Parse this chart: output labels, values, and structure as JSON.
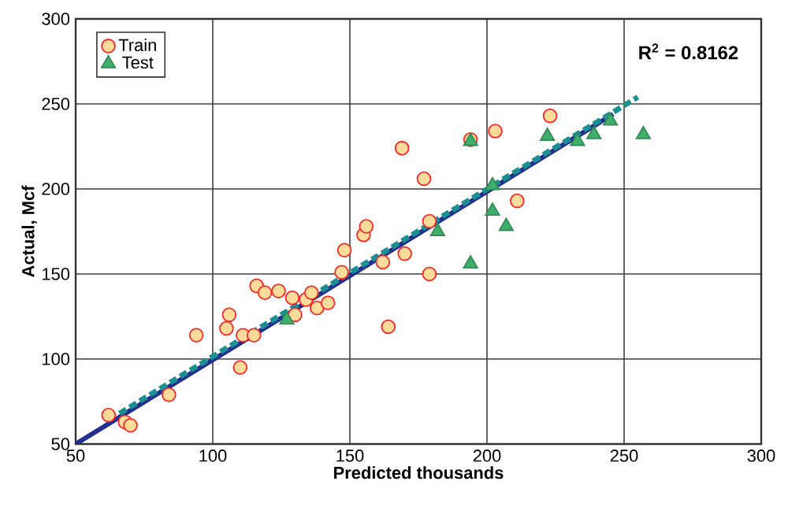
{
  "chart_data": {
    "type": "scatter",
    "xlabel": "Predicted thousands",
    "ylabel": "Actual, Mcf",
    "annotations": [
      "R$^{2}$ = 0.8162"
    ],
    "xlim": [
      50,
      300
    ],
    "ylim": [
      50,
      300
    ],
    "xticks": [
      50,
      100,
      150,
      200,
      250,
      300
    ],
    "yticks": [
      50,
      100,
      150,
      200,
      250,
      300
    ],
    "grid": true,
    "legend": "top left",
    "series": [
      {
        "name": "Train",
        "marker": "circle",
        "color": "#fddc9b",
        "x": [
          62,
          68,
          70,
          84,
          94,
          110,
          105,
          106,
          111,
          115,
          116,
          119,
          124,
          129,
          130,
          134,
          136,
          138,
          142,
          147,
          148,
          155,
          156,
          162,
          170,
          164,
          169,
          177,
          194,
          203,
          223,
          211,
          179,
          179
        ],
        "values": [
          67,
          63,
          61,
          79,
          114,
          95,
          118,
          126,
          114,
          114,
          143,
          139,
          140,
          136,
          126,
          135,
          139,
          130,
          133,
          151,
          164,
          173,
          178,
          157,
          162,
          119,
          224,
          206,
          229,
          234,
          243,
          193,
          181,
          150
        ]
      },
      {
        "name": "Test",
        "marker": "triangle",
        "color": "#3fae6a",
        "x": [
          127,
          194,
          222,
          233,
          239,
          245,
          257,
          202,
          202,
          207,
          182,
          194
        ],
        "values": [
          123,
          228,
          231,
          228,
          232,
          240,
          232,
          202,
          187,
          178,
          175,
          156
        ]
      },
      {
        "type": "line",
        "marker": "none",
        "line_style": "solid",
        "color": "#232f8c",
        "x": [
          50,
          246
        ],
        "values": [
          50,
          244
        ]
      },
      {
        "type": "line",
        "marker": "none",
        "line_style": "dashed",
        "color": "#1b8f91",
        "x": [
          66,
          255
        ],
        "values": [
          68,
          254
        ]
      }
    ]
  }
}
